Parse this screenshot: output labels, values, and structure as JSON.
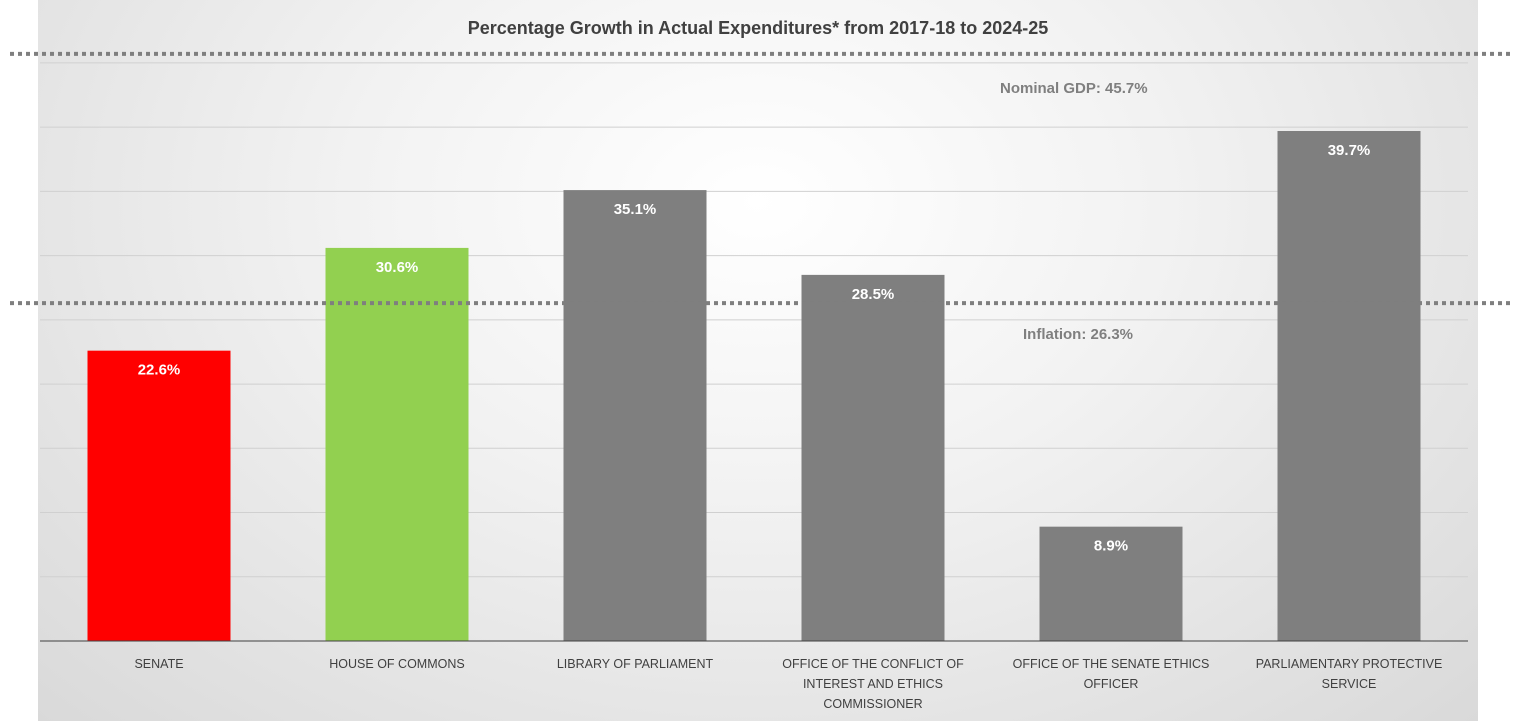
{
  "chart_data": {
    "type": "bar",
    "title": "Percentage Growth in Actual Expenditures* from 2017-18 to 2024-25",
    "categories": [
      "SENATE",
      "HOUSE OF COMMONS",
      "LIBRARY OF PARLIAMENT",
      "OFFICE OF THE CONFLICT OF INTEREST AND ETHICS COMMISSIONER",
      "OFFICE OF THE SENATE ETHICS OFFICER",
      "PARLIAMENTARY PROTECTIVE SERVICE"
    ],
    "values": [
      22.6,
      30.6,
      35.1,
      28.5,
      8.9,
      39.7
    ],
    "data_labels": [
      "22.6%",
      "30.6%",
      "35.1%",
      "28.5%",
      "8.9%",
      "39.7%"
    ],
    "bar_colors": [
      "#ff0000",
      "#92d050",
      "#7f7f7f",
      "#7f7f7f",
      "#7f7f7f",
      "#7f7f7f"
    ],
    "ylim": [
      0,
      45
    ],
    "grid": true,
    "reference_lines": [
      {
        "label": "Nominal GDP: 45.7%",
        "value": 45.7,
        "color": "#7f7f7f",
        "style": "dotted"
      },
      {
        "label": "Inflation: 26.3%",
        "value": 26.3,
        "color": "#7f7f7f",
        "style": "dotted"
      }
    ],
    "xlabel": "",
    "ylabel": ""
  }
}
